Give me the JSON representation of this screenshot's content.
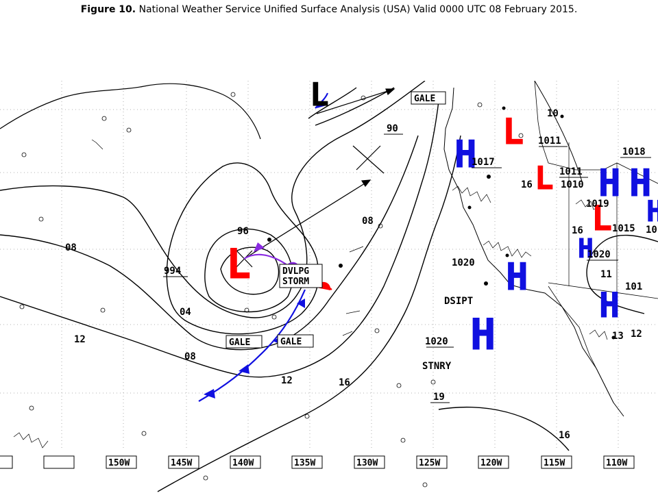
{
  "caption": {
    "label": "Figure 10.",
    "text": "National Weather Service Unified Surface Analysis (USA) Valid 0000 UTC 08 February 2015."
  },
  "colors": {
    "low": "#ff0000",
    "high": "#1010e0",
    "cold_front": "#1010e0",
    "warm_front": "#ff0000",
    "occluded_front": "#8a2be2",
    "isobar": "#000000",
    "grid": "#999999"
  },
  "longitude_labels": [
    "150W",
    "145W",
    "140W",
    "135W",
    "130W",
    "125W",
    "120W",
    "115W",
    "110W"
  ],
  "isobar_labels": [
    "96",
    "08",
    "994",
    "04",
    "12",
    "08",
    "12",
    "16",
    "08",
    "90",
    "16"
  ],
  "pressure_centers": [
    {
      "type": "L",
      "value": "96"
    },
    {
      "type": "H",
      "value": "1020"
    },
    {
      "type": "H",
      "value": "1020"
    },
    {
      "type": "H",
      "value": "1017"
    },
    {
      "type": "L",
      "value": "1011"
    },
    {
      "type": "L",
      "value": "1011"
    },
    {
      "type": "H",
      "value": "1018"
    },
    {
      "type": "L",
      "value": "1019"
    },
    {
      "type": "H",
      "value": "1020"
    },
    {
      "type": "H",
      "value": "1015"
    }
  ],
  "boxed_labels": [
    "GALE",
    "GALE",
    "GALE",
    "DVLPG",
    "STORM"
  ],
  "text_labels": [
    "DSIPT",
    "STNRY",
    "19",
    "16",
    "13",
    "10",
    "12",
    "11",
    "16",
    "1010",
    "101",
    "10"
  ]
}
